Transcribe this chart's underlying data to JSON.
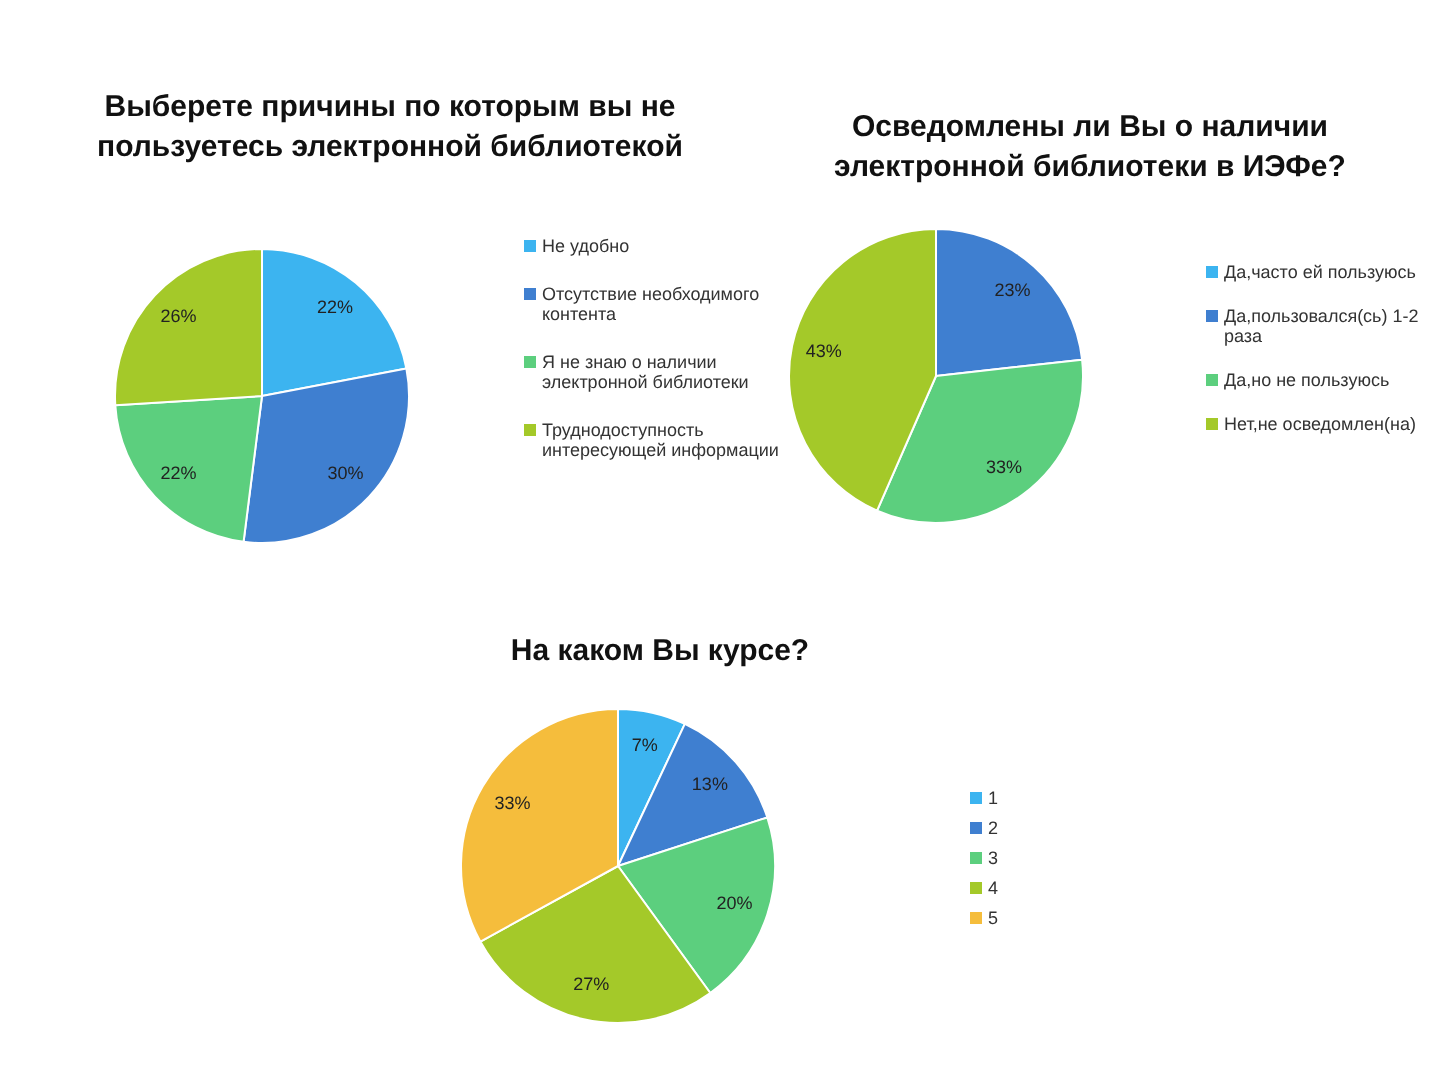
{
  "chart_data": [
    {
      "type": "pie",
      "title": "Выберете причины по которым вы не пользуетесь электронной библиотекой",
      "categories": [
        "Не удобно",
        "Отсутствие необходимого контента",
        "Я не знаю о наличии электронной библиотеки",
        "Труднодоступность интересующей информации"
      ],
      "values": [
        22,
        30,
        22,
        26
      ],
      "colors": [
        "#3cb4f0",
        "#3f7fd0",
        "#5ccf7e",
        "#a4c929"
      ],
      "value_labels": [
        "22%",
        "30%",
        "22%",
        "26%"
      ],
      "legend": "right"
    },
    {
      "type": "pie",
      "title": "Осведомлены ли Вы о наличии электронной библиотеки в ИЭФе?",
      "categories": [
        "Да,часто ей пользуюсь",
        "Да,пользовался(сь) 1-2 раза",
        "Да,но не пользуюсь",
        "Нет,не осведомлен(на)"
      ],
      "values": [
        0,
        23,
        33,
        43
      ],
      "colors": [
        "#3cb4f0",
        "#3f7fd0",
        "#5ccf7e",
        "#a4c929"
      ],
      "value_labels": [
        null,
        "23%",
        "33%",
        "43%"
      ],
      "legend": "right"
    },
    {
      "type": "pie",
      "title": "На каком Вы курсе?",
      "categories": [
        "1",
        "2",
        "3",
        "4",
        "5"
      ],
      "values": [
        7,
        13,
        20,
        27,
        33
      ],
      "colors": [
        "#3cb4f0",
        "#3f7fd0",
        "#5ccf7e",
        "#a4c929",
        "#f5bd3c"
      ],
      "value_labels": [
        "7%",
        "13%",
        "20%",
        "27%",
        "33%"
      ],
      "legend": "right"
    }
  ]
}
